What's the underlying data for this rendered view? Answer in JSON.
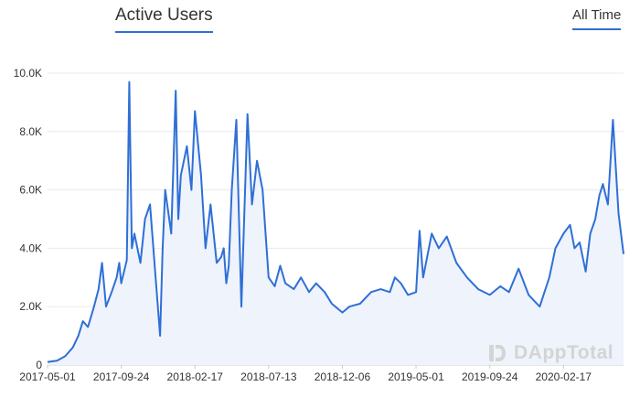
{
  "header": {
    "title": "Active Users",
    "range_label": "All Time"
  },
  "watermark": {
    "text": "DAppTotal",
    "icon": "dapptotal-logo-icon"
  },
  "colors": {
    "line": "#2f6fd6",
    "fill": "#eef3fc",
    "grid": "#eaeaea",
    "axis": "#cccccc"
  },
  "chart_data": {
    "type": "area",
    "title": "Active Users",
    "xlabel": "",
    "ylabel": "",
    "ylim": [
      0,
      10000
    ],
    "yticks": [
      0,
      2000,
      4000,
      6000,
      8000,
      10000
    ],
    "ytick_labels": [
      "0",
      "2.0K",
      "4.0K",
      "6.0K",
      "8.0K",
      "10.0K"
    ],
    "xlim": [
      "2017-05-01",
      "2020-06-15"
    ],
    "xticks": [
      "2017-05-01",
      "2017-09-24",
      "2018-02-17",
      "2018-07-13",
      "2018-12-06",
      "2019-05-01",
      "2019-09-24",
      "2020-02-17"
    ],
    "grid": "horizontal",
    "series": [
      {
        "x": [
          "2017-05-01",
          "2017-05-20",
          "2017-06-05",
          "2017-06-20",
          "2017-07-01",
          "2017-07-10",
          "2017-07-20",
          "2017-08-01",
          "2017-08-10",
          "2017-08-17",
          "2017-08-25",
          "2017-09-05",
          "2017-09-15",
          "2017-09-20",
          "2017-09-24",
          "2017-10-05",
          "2017-10-10",
          "2017-10-15",
          "2017-10-20",
          "2017-11-01",
          "2017-11-10",
          "2017-11-20",
          "2017-12-01",
          "2017-12-10",
          "2017-12-15",
          "2017-12-20",
          "2018-01-01",
          "2018-01-10",
          "2018-01-15",
          "2018-01-20",
          "2018-02-01",
          "2018-02-10",
          "2018-02-17",
          "2018-03-01",
          "2018-03-10",
          "2018-03-20",
          "2018-04-01",
          "2018-04-10",
          "2018-04-15",
          "2018-04-20",
          "2018-04-25",
          "2018-05-01",
          "2018-05-10",
          "2018-05-20",
          "2018-06-01",
          "2018-06-10",
          "2018-06-20",
          "2018-07-01",
          "2018-07-13",
          "2018-07-25",
          "2018-08-05",
          "2018-08-15",
          "2018-09-01",
          "2018-09-15",
          "2018-10-01",
          "2018-10-15",
          "2018-11-01",
          "2018-11-15",
          "2018-12-06",
          "2018-12-20",
          "2019-01-10",
          "2019-02-01",
          "2019-02-20",
          "2019-03-10",
          "2019-03-20",
          "2019-04-01",
          "2019-04-15",
          "2019-05-01",
          "2019-05-08",
          "2019-05-15",
          "2019-06-01",
          "2019-06-15",
          "2019-07-01",
          "2019-07-20",
          "2019-08-10",
          "2019-09-01",
          "2019-09-24",
          "2019-10-15",
          "2019-11-01",
          "2019-11-20",
          "2019-12-10",
          "2020-01-01",
          "2020-01-20",
          "2020-02-01",
          "2020-02-17",
          "2020-03-01",
          "2020-03-10",
          "2020-03-20",
          "2020-04-01",
          "2020-04-10",
          "2020-04-20",
          "2020-04-28",
          "2020-05-05",
          "2020-05-15",
          "2020-05-25",
          "2020-06-05",
          "2020-06-15"
        ],
        "y": [
          100,
          150,
          300,
          600,
          1000,
          1500,
          1300,
          2000,
          2600,
          3500,
          2000,
          2500,
          3000,
          3500,
          2800,
          3600,
          9700,
          4000,
          4500,
          3500,
          5000,
          5500,
          3000,
          1000,
          4000,
          6000,
          4500,
          9400,
          5000,
          6500,
          7500,
          6000,
          8700,
          6500,
          4000,
          5500,
          3500,
          3700,
          4000,
          2800,
          3400,
          6000,
          8400,
          2000,
          8600,
          5500,
          7000,
          6000,
          3000,
          2700,
          3400,
          2800,
          2600,
          3000,
          2500,
          2800,
          2500,
          2100,
          1800,
          2000,
          2100,
          2500,
          2600,
          2500,
          3000,
          2800,
          2400,
          2500,
          4600,
          3000,
          4500,
          4000,
          4400,
          3500,
          3000,
          2600,
          2400,
          2700,
          2500,
          3300,
          2400,
          2000,
          3000,
          4000,
          4500,
          4800,
          4000,
          4200,
          3200,
          4500,
          5000,
          5800,
          6200,
          5500,
          8400,
          5200,
          3800
        ]
      }
    ]
  }
}
